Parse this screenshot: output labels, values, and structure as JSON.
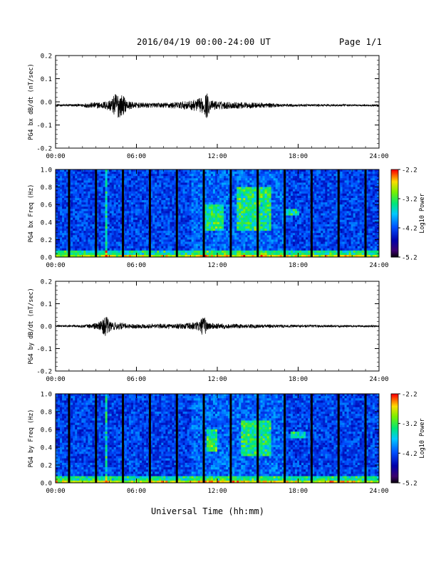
{
  "header": {
    "title": "2016/04/19  00:00-24:00 UT",
    "page": "Page 1/1"
  },
  "x_axis_title": "Universal Time (hh:mm)",
  "colors": {
    "gap": "#000000",
    "background": "#00008c"
  },
  "chart_data": [
    {
      "type": "line",
      "name": "bx-waveform",
      "ylabel": "PG4 bx dB/dt (nT/sec)",
      "ylim": [
        -0.2,
        0.2
      ],
      "yticks": [
        "0.2",
        "0.1",
        "0.0",
        "-0.1",
        "-0.2"
      ],
      "xticks": [
        "00:00",
        "06:00",
        "12:00",
        "18:00",
        "24:00"
      ],
      "xlim_hours": [
        0,
        24
      ],
      "baseline": -0.015,
      "amplitude_envelope": [
        {
          "t": 0.0,
          "amp": 0.004
        },
        {
          "t": 1.8,
          "amp": 0.006
        },
        {
          "t": 2.5,
          "amp": 0.012
        },
        {
          "t": 3.5,
          "amp": 0.015
        },
        {
          "t": 4.2,
          "amp": 0.03
        },
        {
          "t": 4.5,
          "amp": 0.06
        },
        {
          "t": 5.0,
          "amp": 0.045
        },
        {
          "t": 5.3,
          "amp": 0.02
        },
        {
          "t": 6.0,
          "amp": 0.012
        },
        {
          "t": 7.5,
          "amp": 0.01
        },
        {
          "t": 9.0,
          "amp": 0.015
        },
        {
          "t": 10.0,
          "amp": 0.02
        },
        {
          "t": 11.0,
          "amp": 0.035
        },
        {
          "t": 11.2,
          "amp": 0.06
        },
        {
          "t": 11.5,
          "amp": 0.02
        },
        {
          "t": 13.0,
          "amp": 0.015
        },
        {
          "t": 14.5,
          "amp": 0.013
        },
        {
          "t": 16.5,
          "amp": 0.008
        },
        {
          "t": 18.0,
          "amp": 0.005
        },
        {
          "t": 24.0,
          "amp": 0.004
        }
      ]
    },
    {
      "type": "heatmap",
      "name": "bx-spectrogram",
      "ylabel": "PG4 bx Freq (Hz)",
      "ylim": [
        0.0,
        1.0
      ],
      "yticks": [
        "1.0",
        "0.8",
        "0.6",
        "0.4",
        "0.2",
        "0.0"
      ],
      "xticks": [
        "00:00",
        "06:00",
        "12:00",
        "18:00",
        "24:00"
      ],
      "colorbar": {
        "label": "Log10 Power",
        "ticks": [
          "-2.2",
          "-3.2",
          "-4.2",
          "-5.2"
        ],
        "range": [
          -5.2,
          -2.2
        ]
      },
      "gaps_hours": [
        1.0,
        3.0,
        5.0,
        7.0,
        9.0,
        11.0,
        13.0,
        15.0,
        17.0,
        19.0,
        21.0,
        23.0
      ],
      "enhancements": [
        {
          "t0": 11.0,
          "t1": 12.5,
          "f0": 0.3,
          "f1": 0.6
        },
        {
          "t0": 13.5,
          "t1": 16.0,
          "f0": 0.3,
          "f1": 0.8
        },
        {
          "t0": 17.0,
          "t1": 18.0,
          "f0": 0.48,
          "f1": 0.56
        },
        {
          "t0": 3.7,
          "t1": 3.9,
          "f0": 0.0,
          "f1": 1.0
        }
      ]
    },
    {
      "type": "line",
      "name": "by-waveform",
      "ylabel": "PG4 by dB/dt (nT/sec)",
      "ylim": [
        -0.2,
        0.2
      ],
      "yticks": [
        "0.2",
        "0.1",
        "0.0",
        "-0.1",
        "-0.2"
      ],
      "xticks": [
        "00:00",
        "06:00",
        "12:00",
        "18:00",
        "24:00"
      ],
      "xlim_hours": [
        0,
        24
      ],
      "baseline": 0.0,
      "amplitude_envelope": [
        {
          "t": 0.0,
          "amp": 0.004
        },
        {
          "t": 2.0,
          "amp": 0.006
        },
        {
          "t": 2.6,
          "amp": 0.01
        },
        {
          "t": 3.3,
          "amp": 0.02
        },
        {
          "t": 3.7,
          "amp": 0.045
        },
        {
          "t": 4.2,
          "amp": 0.02
        },
        {
          "t": 5.5,
          "amp": 0.01
        },
        {
          "t": 8.0,
          "amp": 0.01
        },
        {
          "t": 9.5,
          "amp": 0.012
        },
        {
          "t": 10.5,
          "amp": 0.02
        },
        {
          "t": 11.0,
          "amp": 0.045
        },
        {
          "t": 11.4,
          "amp": 0.015
        },
        {
          "t": 13.0,
          "amp": 0.01
        },
        {
          "t": 16.0,
          "amp": 0.007
        },
        {
          "t": 24.0,
          "amp": 0.004
        }
      ]
    },
    {
      "type": "heatmap",
      "name": "by-spectrogram",
      "ylabel": "PG4 by Freq (Hz)",
      "ylim": [
        0.0,
        1.0
      ],
      "yticks": [
        "1.0",
        "0.8",
        "0.6",
        "0.4",
        "0.2",
        "0.0"
      ],
      "xticks": [
        "00:00",
        "06:00",
        "12:00",
        "18:00",
        "24:00"
      ],
      "colorbar": {
        "label": "Log10 Power",
        "ticks": [
          "-2.2",
          "-3.2",
          "-4.2",
          "-5.2"
        ],
        "range": [
          -5.2,
          -2.2
        ]
      },
      "gaps_hours": [
        1.0,
        3.0,
        5.0,
        7.0,
        9.0,
        11.0,
        13.0,
        15.0,
        17.0,
        19.0,
        21.0,
        23.0
      ],
      "enhancements": [
        {
          "t0": 11.2,
          "t1": 12.0,
          "f0": 0.35,
          "f1": 0.6
        },
        {
          "t0": 13.8,
          "t1": 16.0,
          "f0": 0.3,
          "f1": 0.7
        },
        {
          "t0": 17.5,
          "t1": 18.5,
          "f0": 0.5,
          "f1": 0.58
        },
        {
          "t0": 3.7,
          "t1": 3.9,
          "f0": 0.0,
          "f1": 1.0
        }
      ]
    }
  ]
}
